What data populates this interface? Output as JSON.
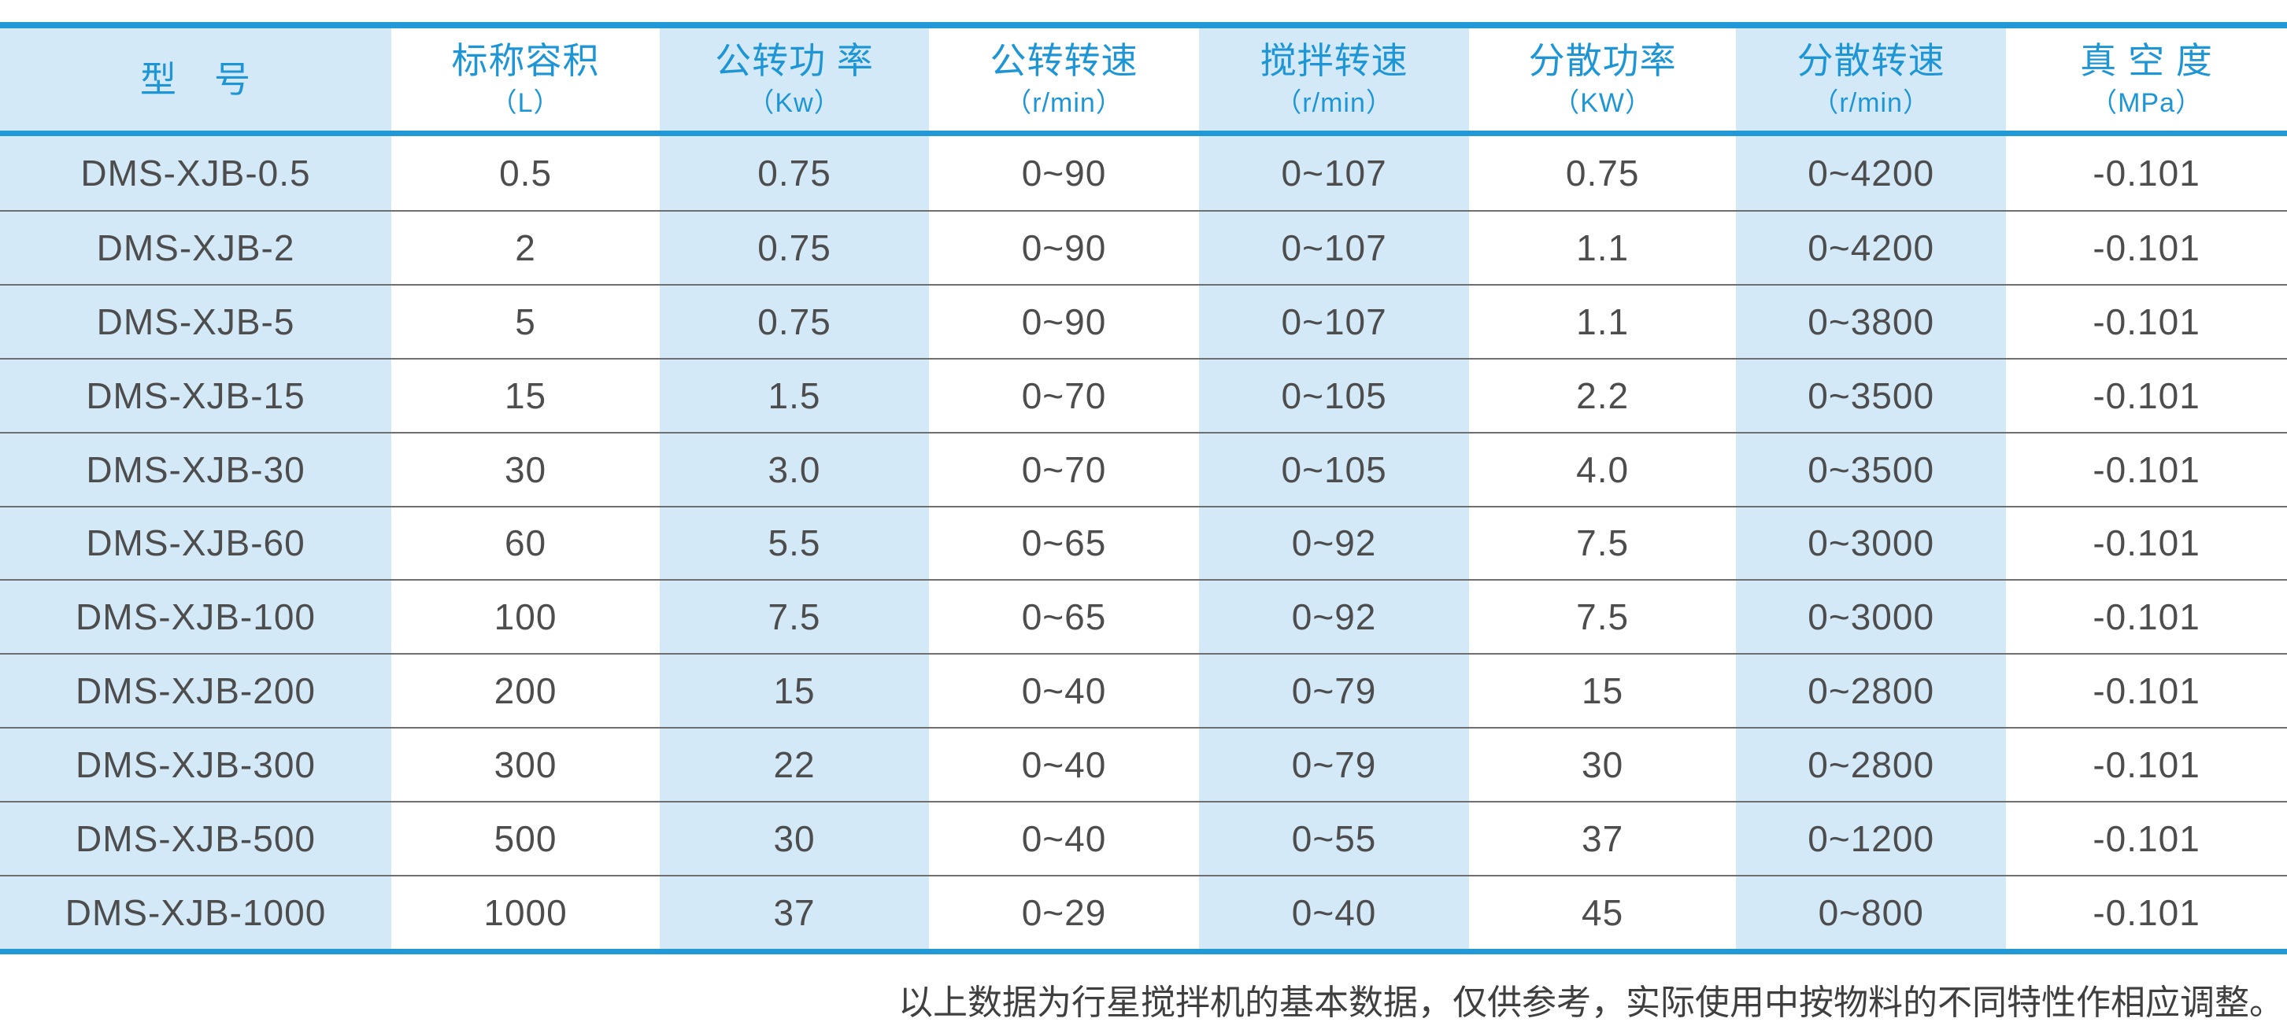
{
  "table": {
    "columns": [
      {
        "label": "型　号",
        "unit": "",
        "shaded": true
      },
      {
        "label": "标称容积",
        "unit": "（L）",
        "shaded": false
      },
      {
        "label": "公转功 率",
        "unit": "（Kw）",
        "shaded": true
      },
      {
        "label": "公转转速",
        "unit": "（r/min）",
        "shaded": false
      },
      {
        "label": "搅拌转速",
        "unit": "（r/min）",
        "shaded": true
      },
      {
        "label": "分散功率",
        "unit": "（KW）",
        "shaded": false
      },
      {
        "label": "分散转速",
        "unit": "（r/min）",
        "shaded": true
      },
      {
        "label": "真 空 度",
        "unit": "（MPa）",
        "shaded": false
      }
    ],
    "rows": [
      [
        "DMS-XJB-0.5",
        "0.5",
        "0.75",
        "0~90",
        "0~107",
        "0.75",
        "0~4200",
        "-0.101"
      ],
      [
        "DMS-XJB-2",
        "2",
        "0.75",
        "0~90",
        "0~107",
        "1.1",
        "0~4200",
        "-0.101"
      ],
      [
        "DMS-XJB-5",
        "5",
        "0.75",
        "0~90",
        "0~107",
        "1.1",
        "0~3800",
        "-0.101"
      ],
      [
        "DMS-XJB-15",
        "15",
        "1.5",
        "0~70",
        "0~105",
        "2.2",
        "0~3500",
        "-0.101"
      ],
      [
        "DMS-XJB-30",
        "30",
        "3.0",
        "0~70",
        "0~105",
        "4.0",
        "0~3500",
        "-0.101"
      ],
      [
        "DMS-XJB-60",
        "60",
        "5.5",
        "0~65",
        "0~92",
        "7.5",
        "0~3000",
        "-0.101"
      ],
      [
        "DMS-XJB-100",
        "100",
        "7.5",
        "0~65",
        "0~92",
        "7.5",
        "0~3000",
        "-0.101"
      ],
      [
        "DMS-XJB-200",
        "200",
        "15",
        "0~40",
        "0~79",
        "15",
        "0~2800",
        "-0.101"
      ],
      [
        "DMS-XJB-300",
        "300",
        "22",
        "0~40",
        "0~79",
        "30",
        "0~2800",
        "-0.101"
      ],
      [
        "DMS-XJB-500",
        "500",
        "30",
        "0~40",
        "0~55",
        "37",
        "0~1200",
        "-0.101"
      ],
      [
        "DMS-XJB-1000",
        "1000",
        "37",
        "0~29",
        "0~40",
        "45",
        "0~800",
        "-0.101"
      ]
    ]
  },
  "footer": {
    "note": "以上数据为行星搅拌机的基本数据，仅供参考，实际使用中按物料的不同特性作相应调整。"
  },
  "colors": {
    "accent_blue": "#2199d6",
    "header_text_blue": "#1e96d5",
    "shaded_cell_blue": "#d4e9f8",
    "data_text_gray": "#4d4d4d",
    "row_divider_gray": "#6f6f6f"
  }
}
